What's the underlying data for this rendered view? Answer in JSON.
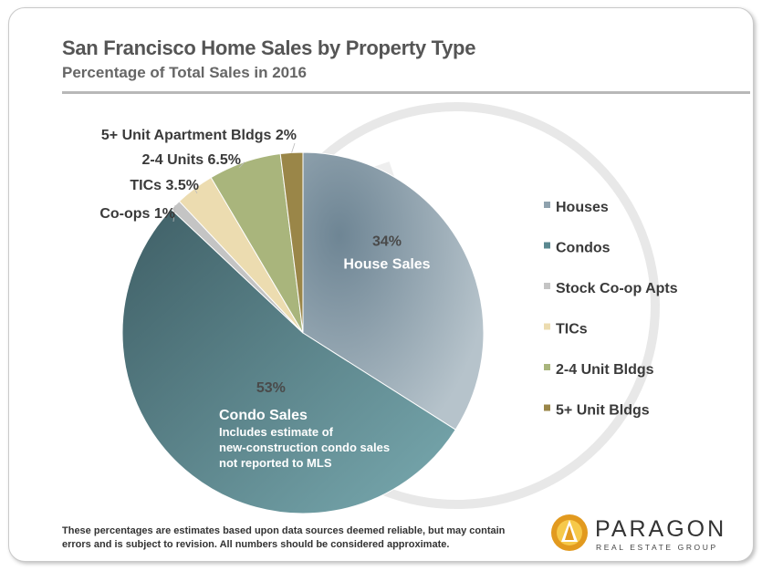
{
  "title": "San Francisco Home Sales by Property Type",
  "subtitle": "Percentage of Total Sales in 2016",
  "footnote": "These percentages are estimates based upon data sources deemed reliable, but may contain errors and is subject to revision. All numbers should be considered approximate.",
  "logo": {
    "name": "PARAGON",
    "tagline": "REAL ESTATE GROUP"
  },
  "chart_data": {
    "type": "pie",
    "title": "San Francisco Home Sales by Property Type",
    "subtitle": "Percentage of Total Sales in 2016",
    "start_angle_deg": 0,
    "direction": "clockwise",
    "legend_position": "right",
    "slices": [
      {
        "name": "Houses",
        "value": 34,
        "color": "#8fa2ae",
        "label_pct": "34%",
        "label_text": "House Sales"
      },
      {
        "name": "Condos",
        "value": 53,
        "color": "#5a8890",
        "label_pct": "53%",
        "label_text": "Condo Sales",
        "label_note": "Includes estimate of new-construction condo sales not reported to MLS"
      },
      {
        "name": "Stock Co-op Apts",
        "value": 1,
        "color": "#c4c4c4",
        "label_text": "Co-ops",
        "label_pct": "1%"
      },
      {
        "name": "TICs",
        "value": 3.5,
        "color": "#ecdcb0",
        "label_text": "TICs",
        "label_pct": "3.5%"
      },
      {
        "name": "2-4 Unit Bldgs",
        "value": 6.5,
        "color": "#a9b57c",
        "label_text": "2-4 Units",
        "label_pct": "6.5%"
      },
      {
        "name": "5+ Unit Bldgs",
        "value": 2,
        "color": "#9a8648",
        "label_text": "5+ Unit Apartment Bldgs",
        "label_pct": "2%"
      }
    ],
    "legend": [
      "Houses",
      "Condos",
      "Stock Co-op Apts",
      "TICs",
      "2-4 Unit Bldgs",
      "5+ Unit Bldgs"
    ]
  }
}
